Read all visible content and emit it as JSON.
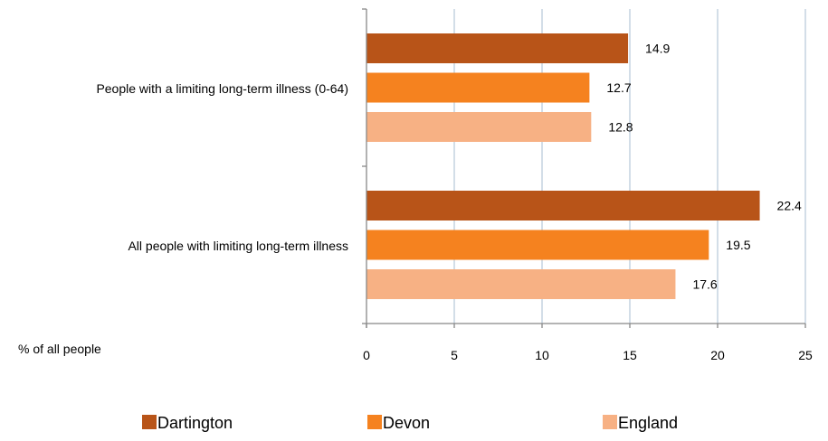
{
  "chart_data": {
    "type": "bar",
    "orientation": "horizontal",
    "categories": [
      "People with a limiting long-term illness (0-64)",
      "All people with limiting long-term illness"
    ],
    "series": [
      {
        "name": "Dartington",
        "color": "#b85418",
        "values": [
          14.9,
          22.4
        ]
      },
      {
        "name": "Devon",
        "color": "#f5821f",
        "values": [
          12.7,
          19.5
        ]
      },
      {
        "name": "England",
        "color": "#f7b184",
        "values": [
          12.8,
          17.6
        ]
      }
    ],
    "xlabel": "% of all people",
    "xlim": [
      0,
      25
    ],
    "xticks": [
      0,
      5,
      10,
      15,
      20,
      25
    ],
    "grid": true,
    "legend_position": "bottom",
    "data_labels": true
  }
}
